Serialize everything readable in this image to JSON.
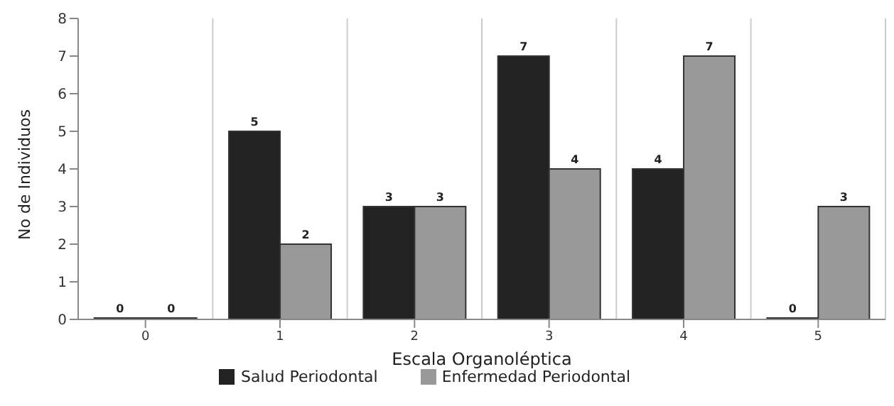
{
  "chart_data": {
    "type": "bar",
    "xlabel": "Escala Organoléptica",
    "ylabel": "No de Individuos",
    "categories": [
      "0",
      "1",
      "2",
      "3",
      "4",
      "5"
    ],
    "series": [
      {
        "name": "Salud Periodontal",
        "color": "#222222",
        "values": [
          0,
          5,
          3,
          7,
          4,
          0
        ]
      },
      {
        "name": "Enfermedad Periodontal",
        "color": "#999999",
        "values": [
          0,
          2,
          3,
          4,
          7,
          3
        ]
      }
    ],
    "ylim": [
      0,
      8
    ],
    "yticks": [
      0,
      1,
      2,
      3,
      4,
      5,
      6,
      7,
      8
    ],
    "grid": "x",
    "legend": "bottom",
    "data_labels": true
  }
}
